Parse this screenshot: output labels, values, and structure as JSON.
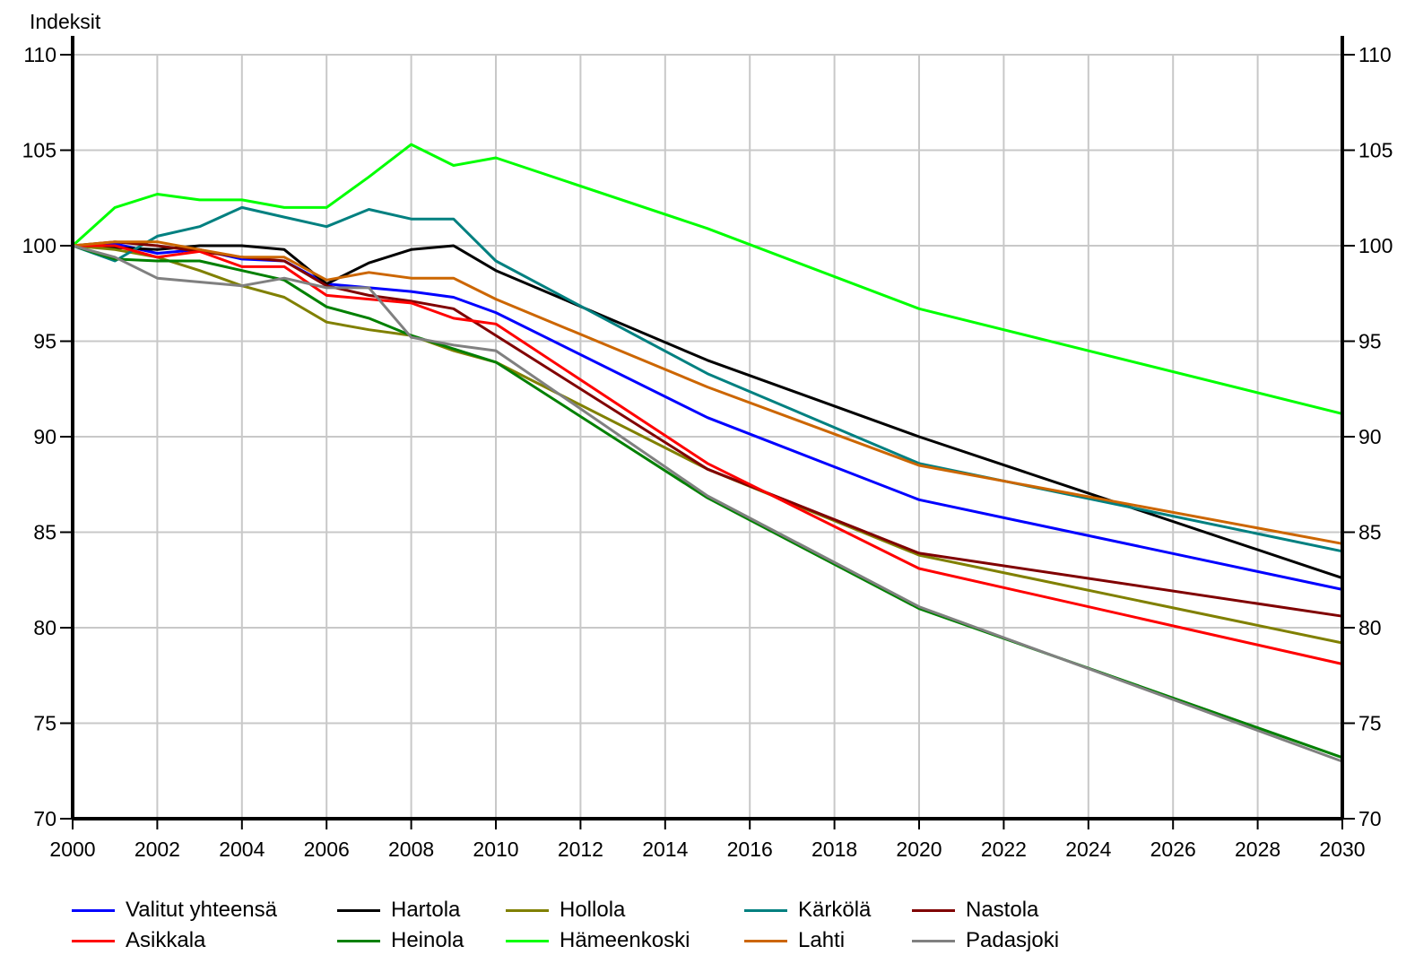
{
  "chart_data": {
    "type": "line",
    "ylabel": "Indeksit",
    "xlim": [
      2000,
      2030
    ],
    "ylim": [
      70,
      110
    ],
    "x_ticks": [
      "2000",
      "2002",
      "2004",
      "2006",
      "2008",
      "2010",
      "2012",
      "2014",
      "2016",
      "2018",
      "2020",
      "2022",
      "2024",
      "2026",
      "2028",
      "2030"
    ],
    "y_ticks": [
      "70",
      "75",
      "80",
      "85",
      "90",
      "95",
      "100",
      "105",
      "110"
    ],
    "grid": true,
    "legend_position": "bottom",
    "series": [
      {
        "name": "Valitut yhteensä",
        "color": "#0000ff",
        "x": [
          2000,
          2001,
          2002,
          2003,
          2004,
          2005,
          2006,
          2007,
          2008,
          2009,
          2010,
          2015,
          2020,
          2030
        ],
        "values": [
          100,
          100.1,
          99.6,
          99.8,
          99.3,
          99.2,
          98.0,
          97.8,
          97.6,
          97.3,
          96.5,
          91.0,
          86.7,
          82.0
        ]
      },
      {
        "name": "Hartola",
        "color": "#000000",
        "x": [
          2000,
          2001,
          2002,
          2003,
          2004,
          2005,
          2006,
          2007,
          2008,
          2009,
          2010,
          2015,
          2020,
          2030
        ],
        "values": [
          100,
          99.9,
          99.8,
          100.0,
          100.0,
          99.8,
          98.0,
          99.1,
          99.8,
          100.0,
          98.7,
          94.0,
          90.0,
          82.6
        ]
      },
      {
        "name": "Hollola",
        "color": "#808000",
        "x": [
          2000,
          2001,
          2002,
          2003,
          2004,
          2005,
          2006,
          2007,
          2008,
          2009,
          2010,
          2015,
          2020,
          2030
        ],
        "values": [
          100,
          99.8,
          99.4,
          98.7,
          97.9,
          97.3,
          96.0,
          95.6,
          95.3,
          94.5,
          93.9,
          88.3,
          83.8,
          79.2
        ]
      },
      {
        "name": "Kärkölä",
        "color": "#008080",
        "x": [
          2000,
          2001,
          2002,
          2003,
          2004,
          2005,
          2006,
          2007,
          2008,
          2009,
          2010,
          2015,
          2020,
          2030
        ],
        "values": [
          100,
          99.2,
          100.5,
          101.0,
          102.0,
          101.5,
          101.0,
          101.9,
          101.4,
          101.4,
          99.2,
          93.3,
          88.6,
          84.0
        ]
      },
      {
        "name": "Nastola",
        "color": "#800000",
        "x": [
          2000,
          2001,
          2002,
          2003,
          2004,
          2005,
          2006,
          2007,
          2008,
          2009,
          2010,
          2015,
          2020,
          2030
        ],
        "values": [
          100,
          100.2,
          100.0,
          99.7,
          99.4,
          99.2,
          97.9,
          97.4,
          97.1,
          96.7,
          95.3,
          88.3,
          83.9,
          80.6
        ]
      },
      {
        "name": "Asikkala",
        "color": "#ff0000",
        "x": [
          2000,
          2001,
          2002,
          2003,
          2004,
          2005,
          2006,
          2007,
          2008,
          2009,
          2010,
          2015,
          2020,
          2030
        ],
        "values": [
          100,
          100.0,
          99.4,
          99.7,
          98.9,
          98.9,
          97.4,
          97.2,
          97.0,
          96.2,
          95.9,
          88.6,
          83.1,
          78.1
        ]
      },
      {
        "name": "Heinola",
        "color": "#008000",
        "x": [
          2000,
          2001,
          2002,
          2003,
          2004,
          2005,
          2006,
          2007,
          2008,
          2009,
          2010,
          2015,
          2020,
          2030
        ],
        "values": [
          100,
          99.3,
          99.2,
          99.2,
          98.7,
          98.2,
          96.8,
          96.2,
          95.3,
          94.6,
          93.9,
          86.8,
          81.0,
          73.2
        ]
      },
      {
        "name": "Hämeenkoski",
        "color": "#00ff00",
        "x": [
          2000,
          2001,
          2002,
          2003,
          2004,
          2005,
          2006,
          2007,
          2008,
          2009,
          2010,
          2015,
          2020,
          2030
        ],
        "values": [
          100,
          102.0,
          102.7,
          102.4,
          102.4,
          102.0,
          102.0,
          103.6,
          105.3,
          104.2,
          104.6,
          100.9,
          96.7,
          91.2
        ]
      },
      {
        "name": "Lahti",
        "color": "#cc6600",
        "x": [
          2000,
          2001,
          2002,
          2003,
          2004,
          2005,
          2006,
          2007,
          2008,
          2009,
          2010,
          2015,
          2020,
          2030
        ],
        "values": [
          100,
          100.2,
          100.2,
          99.8,
          99.4,
          99.4,
          98.2,
          98.6,
          98.3,
          98.3,
          97.2,
          92.6,
          88.5,
          84.4
        ]
      },
      {
        "name": "Padasjoki",
        "color": "#808080",
        "x": [
          2000,
          2001,
          2002,
          2003,
          2004,
          2005,
          2006,
          2007,
          2008,
          2009,
          2010,
          2015,
          2020,
          2030
        ],
        "values": [
          100,
          99.4,
          98.3,
          98.1,
          97.9,
          98.3,
          97.8,
          97.8,
          95.2,
          94.8,
          94.5,
          86.9,
          81.1,
          73.0
        ]
      }
    ]
  }
}
